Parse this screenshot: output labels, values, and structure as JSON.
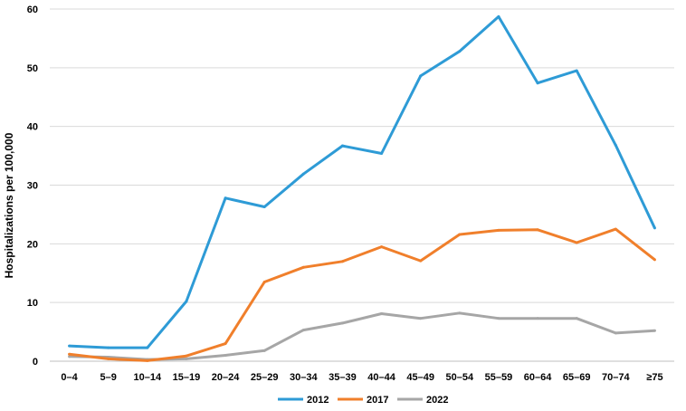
{
  "chart_data": {
    "type": "line",
    "title": "",
    "xlabel": "",
    "ylabel": "Hospitalizations  per 100,000",
    "ylim": [
      0,
      60
    ],
    "yticks": [
      0,
      10,
      20,
      30,
      40,
      50,
      60
    ],
    "grid": true,
    "legend": "bottom",
    "categories": [
      "0–4",
      "5–9",
      "10–14",
      "15–19",
      "20–24",
      "25–29",
      "30–34",
      "35–39",
      "40–44",
      "45–49",
      "50–54",
      "55–59",
      "60–64",
      "65–69",
      "70–74",
      "≥75"
    ],
    "series": [
      {
        "name": "2012",
        "color": "#2e9bd6",
        "values": [
          2.6,
          2.3,
          2.3,
          10.2,
          27.8,
          26.3,
          31.9,
          36.7,
          35.4,
          48.6,
          52.8,
          58.7,
          47.4,
          49.5,
          36.8,
          22.7
        ]
      },
      {
        "name": "2017",
        "color": "#f07f2b",
        "values": [
          1.2,
          0.4,
          0.1,
          0.9,
          3.0,
          13.5,
          16.0,
          17.0,
          19.5,
          17.1,
          21.6,
          22.3,
          22.4,
          20.2,
          22.5,
          17.3
        ]
      },
      {
        "name": "2022",
        "color": "#a6a6a6",
        "values": [
          0.8,
          0.7,
          0.3,
          0.4,
          1.0,
          1.8,
          5.3,
          6.5,
          8.1,
          7.3,
          8.2,
          7.3,
          7.3,
          7.3,
          4.8,
          5.2
        ]
      }
    ]
  }
}
